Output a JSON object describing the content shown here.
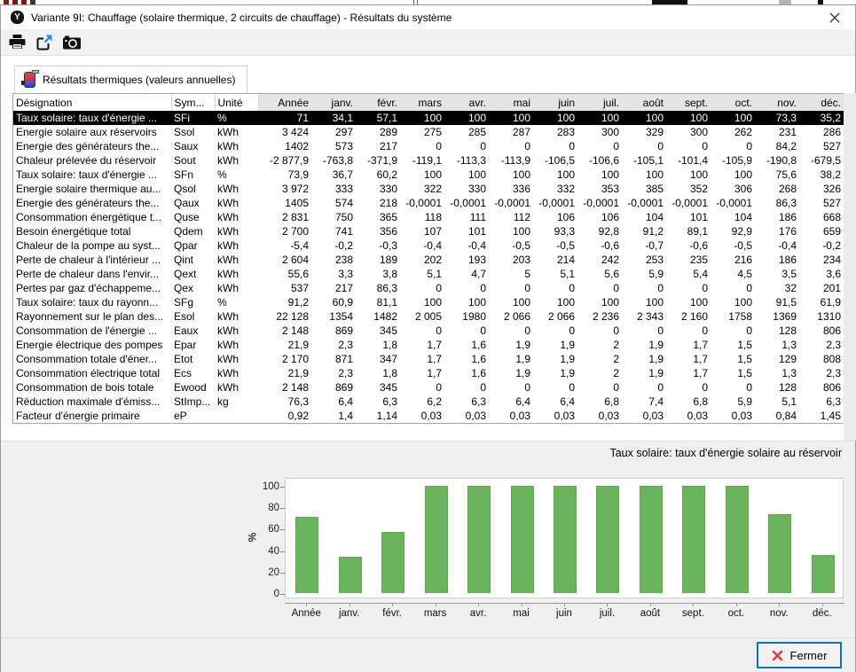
{
  "window": {
    "title": "Variante 9I: Chauffage (solaire thermique, 2 circuits de chauffage) - Résultats du système"
  },
  "toolbar": {
    "icons": [
      "print-icon",
      "export-icon",
      "camera-icon"
    ]
  },
  "tab": {
    "label": "Résultats thermiques (valeurs annuelles)"
  },
  "table": {
    "columns": [
      "Désignation",
      "Sym...",
      "Unité",
      "Année",
      "janv.",
      "févr.",
      "mars",
      "avr.",
      "mai",
      "juin",
      "juil.",
      "août",
      "sept.",
      "oct.",
      "nov.",
      "déc."
    ],
    "rows": [
      {
        "designation": "Taux solaire: taux d'énergie ...",
        "symbol": "SFi",
        "unit": "%",
        "selected": true,
        "values": [
          "71",
          "34,1",
          "57,1",
          "100",
          "100",
          "100",
          "100",
          "100",
          "100",
          "100",
          "100",
          "73,3",
          "35,2"
        ]
      },
      {
        "designation": "Energie solaire aux réservoirs",
        "symbol": "Ssol",
        "unit": "kWh",
        "values": [
          "3 424",
          "297",
          "289",
          "275",
          "285",
          "287",
          "283",
          "300",
          "329",
          "300",
          "262",
          "231",
          "286"
        ]
      },
      {
        "designation": "Energie des générateurs the...",
        "symbol": "Saux",
        "unit": "kWh",
        "values": [
          "1402",
          "573",
          "217",
          "0",
          "0",
          "0",
          "0",
          "0",
          "0",
          "0",
          "0",
          "84,2",
          "527"
        ]
      },
      {
        "designation": "Chaleur prélevée du réservoir",
        "symbol": "Sout",
        "unit": "kWh",
        "values": [
          "-2 877,9",
          "-763,8",
          "-371,9",
          "-119,1",
          "-113,3",
          "-113,9",
          "-106,5",
          "-106,6",
          "-105,1",
          "-101,4",
          "-105,9",
          "-190,8",
          "-679,5"
        ]
      },
      {
        "designation": "Taux solaire: taux d'énergie ...",
        "symbol": "SFn",
        "unit": "%",
        "values": [
          "73,9",
          "36,7",
          "60,2",
          "100",
          "100",
          "100",
          "100",
          "100",
          "100",
          "100",
          "100",
          "75,6",
          "38,2"
        ]
      },
      {
        "designation": "Energie solaire thermique au...",
        "symbol": "Qsol",
        "unit": "kWh",
        "values": [
          "3 972",
          "333",
          "330",
          "322",
          "330",
          "336",
          "332",
          "353",
          "385",
          "352",
          "306",
          "268",
          "326"
        ]
      },
      {
        "designation": "Energie des générateurs the...",
        "symbol": "Qaux",
        "unit": "kWh",
        "values": [
          "1405",
          "574",
          "218",
          "-0,0001",
          "-0,0001",
          "-0,0001",
          "-0,0001",
          "-0,0001",
          "-0,0001",
          "-0,0001",
          "-0,0001",
          "86,3",
          "527"
        ]
      },
      {
        "designation": "Consommation énergétique t...",
        "symbol": "Quse",
        "unit": "kWh",
        "values": [
          "2 831",
          "750",
          "365",
          "118",
          "111",
          "112",
          "106",
          "106",
          "104",
          "101",
          "104",
          "186",
          "668"
        ]
      },
      {
        "designation": "Besoin énergétique total",
        "symbol": "Qdem",
        "unit": "kWh",
        "values": [
          "2 700",
          "741",
          "356",
          "107",
          "101",
          "100",
          "93,3",
          "92,8",
          "91,2",
          "89,1",
          "92,9",
          "176",
          "659"
        ]
      },
      {
        "designation": "Chaleur de la pompe au syst...",
        "symbol": "Qpar",
        "unit": "kWh",
        "values": [
          "-5,4",
          "-0,2",
          "-0,3",
          "-0,4",
          "-0,4",
          "-0,5",
          "-0,5",
          "-0,6",
          "-0,7",
          "-0,6",
          "-0,5",
          "-0,4",
          "-0,2"
        ]
      },
      {
        "designation": "Perte de chaleur à l'intérieur ...",
        "symbol": "Qint",
        "unit": "kWh",
        "values": [
          "2 604",
          "238",
          "189",
          "202",
          "193",
          "203",
          "214",
          "242",
          "253",
          "235",
          "216",
          "186",
          "234"
        ]
      },
      {
        "designation": "Perte de chaleur dans l'envir...",
        "symbol": "Qext",
        "unit": "kWh",
        "values": [
          "55,6",
          "3,3",
          "3,8",
          "5,1",
          "4,7",
          "5",
          "5,1",
          "5,6",
          "5,9",
          "5,4",
          "4,5",
          "3,5",
          "3,6"
        ]
      },
      {
        "designation": "Pertes par gaz d'échappeme...",
        "symbol": "Qex",
        "unit": "kWh",
        "values": [
          "537",
          "217",
          "86,3",
          "0",
          "0",
          "0",
          "0",
          "0",
          "0",
          "0",
          "0",
          "32",
          "201"
        ]
      },
      {
        "designation": "Taux solaire: taux du rayonn...",
        "symbol": "SFg",
        "unit": "%",
        "values": [
          "91,2",
          "60,9",
          "81,1",
          "100",
          "100",
          "100",
          "100",
          "100",
          "100",
          "100",
          "100",
          "91,5",
          "61,9"
        ]
      },
      {
        "designation": "Rayonnement sur le plan des...",
        "symbol": "Esol",
        "unit": "kWh",
        "values": [
          "22 128",
          "1354",
          "1482",
          "2 005",
          "1980",
          "2 066",
          "2 066",
          "2 236",
          "2 343",
          "2 160",
          "1758",
          "1369",
          "1310"
        ]
      },
      {
        "designation": "Consommation de l'énergie ...",
        "symbol": "Eaux",
        "unit": "kWh",
        "values": [
          "2 148",
          "869",
          "345",
          "0",
          "0",
          "0",
          "0",
          "0",
          "0",
          "0",
          "0",
          "128",
          "806"
        ]
      },
      {
        "designation": "Energie électrique des pompes",
        "symbol": "Epar",
        "unit": "kWh",
        "values": [
          "21,9",
          "2,3",
          "1,8",
          "1,7",
          "1,6",
          "1,9",
          "1,9",
          "2",
          "1,9",
          "1,7",
          "1,5",
          "1,3",
          "2,3"
        ]
      },
      {
        "designation": "Consommation totale d'éner...",
        "symbol": "Etot",
        "unit": "kWh",
        "values": [
          "2 170",
          "871",
          "347",
          "1,7",
          "1,6",
          "1,9",
          "1,9",
          "2",
          "1,9",
          "1,7",
          "1,5",
          "129",
          "808"
        ]
      },
      {
        "designation": "Consommation électrique total",
        "symbol": "Ecs",
        "unit": "kWh",
        "values": [
          "21,9",
          "2,3",
          "1,8",
          "1,7",
          "1,6",
          "1,9",
          "1,9",
          "2",
          "1,9",
          "1,7",
          "1,5",
          "1,3",
          "2,3"
        ]
      },
      {
        "designation": "Consommation de bois totale",
        "symbol": "Ewood",
        "unit": "kWh",
        "values": [
          "2 148",
          "869",
          "345",
          "0",
          "0",
          "0",
          "0",
          "0",
          "0",
          "0",
          "0",
          "128",
          "806"
        ]
      },
      {
        "designation": "Réduction maximale d'émiss...",
        "symbol": "StImp...",
        "unit": "kg",
        "values": [
          "76,3",
          "6,4",
          "6,3",
          "6,2",
          "6,3",
          "6,4",
          "6,4",
          "6,8",
          "7,4",
          "6,8",
          "5,9",
          "5,1",
          "6,3"
        ]
      },
      {
        "designation": "Facteur d'énergie primaire",
        "symbol": "eP",
        "unit": "",
        "values": [
          "0,92",
          "1,4",
          "1,14",
          "0,03",
          "0,03",
          "0,03",
          "0,03",
          "0,03",
          "0,03",
          "0,03",
          "0,03",
          "0,84",
          "1,45"
        ]
      }
    ]
  },
  "chart_data": {
    "type": "bar",
    "title": "Taux solaire: taux d'énergie solaire au réservoir",
    "ylabel": "%",
    "categories": [
      "Année",
      "janv.",
      "févr.",
      "mars",
      "avr.",
      "mai",
      "juin",
      "juil.",
      "août",
      "sept.",
      "oct.",
      "nov.",
      "déc."
    ],
    "values": [
      71,
      34.1,
      57.1,
      100,
      100,
      100,
      100,
      100,
      100,
      100,
      100,
      73.3,
      35.2
    ],
    "yticks": [
      0,
      20,
      40,
      60,
      80,
      100
    ],
    "ylim": [
      0,
      100
    ],
    "bar_color": "#6cb45c",
    "grid": false,
    "legend": false
  },
  "footer": {
    "close_button": "Fermer"
  },
  "colors": {
    "accent_blue": "#0b6fc2",
    "selected_row_bg": "#000000",
    "bar_green": "#6cb45c",
    "close_x_red": "#e03a3a",
    "header_gray": "#e4e4e4"
  }
}
